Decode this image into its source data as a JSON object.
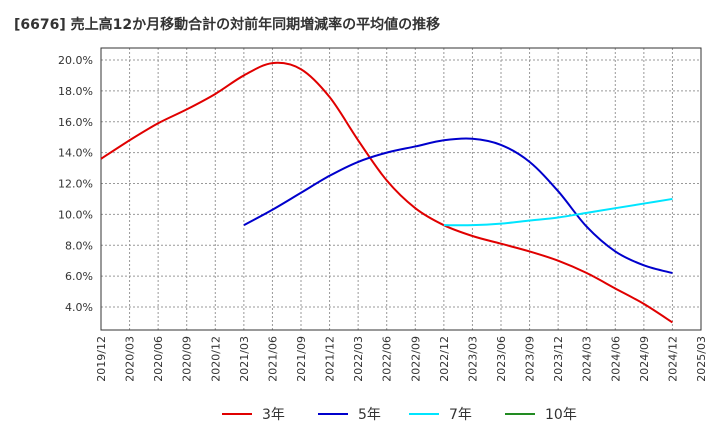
{
  "chart_data": {
    "type": "line",
    "title": "[6676]  売上高12か月移動合計の対前年同期増減率の平均値の推移",
    "x_ticks": [
      "2019/12",
      "2020/03",
      "2020/06",
      "2020/09",
      "2020/12",
      "2021/03",
      "2021/06",
      "2021/09",
      "2021/12",
      "2022/03",
      "2022/06",
      "2022/09",
      "2022/12",
      "2023/03",
      "2023/06",
      "2023/09",
      "2023/12",
      "2024/03",
      "2024/06",
      "2024/09",
      "2024/12",
      "2025/03"
    ],
    "y_ticks": [
      "4.0%",
      "6.0%",
      "8.0%",
      "10.0%",
      "12.0%",
      "14.0%",
      "16.0%",
      "18.0%",
      "20.0%"
    ],
    "ylim": [
      2.5,
      20.0
    ],
    "grid": true,
    "legend_position": "bottom",
    "series": [
      {
        "name": "3年",
        "color": "#e00000",
        "x": [
          "2019/12",
          "2020/03",
          "2020/06",
          "2020/09",
          "2020/12",
          "2021/03",
          "2021/06",
          "2021/09",
          "2021/12",
          "2022/03",
          "2022/06",
          "2022/09",
          "2022/12",
          "2023/03",
          "2023/06",
          "2023/09",
          "2023/12",
          "2024/03",
          "2024/06",
          "2024/09",
          "2024/12"
        ],
        "values": [
          13.6,
          14.8,
          15.9,
          16.8,
          17.8,
          19.0,
          19.8,
          19.4,
          17.6,
          14.8,
          12.2,
          10.4,
          9.3,
          8.6,
          8.1,
          7.6,
          7.0,
          6.2,
          5.2,
          4.2,
          3.0
        ]
      },
      {
        "name": "5年",
        "color": "#0000cc",
        "x": [
          "2021/03",
          "2021/06",
          "2021/09",
          "2021/12",
          "2022/03",
          "2022/06",
          "2022/09",
          "2022/12",
          "2023/03",
          "2023/06",
          "2023/09",
          "2023/12",
          "2024/03",
          "2024/06",
          "2024/09",
          "2024/12"
        ],
        "values": [
          9.3,
          10.3,
          11.4,
          12.5,
          13.4,
          14.0,
          14.4,
          14.8,
          14.9,
          14.5,
          13.4,
          11.5,
          9.2,
          7.6,
          6.7,
          6.2
        ]
      },
      {
        "name": "7年",
        "color": "#00e5ff",
        "x": [
          "2022/12",
          "2023/03",
          "2023/06",
          "2023/09",
          "2023/12",
          "2024/03",
          "2024/06",
          "2024/09",
          "2024/12"
        ],
        "values": [
          9.3,
          9.3,
          9.4,
          9.6,
          9.8,
          10.1,
          10.4,
          10.7,
          11.0
        ]
      },
      {
        "name": "10年",
        "color": "#228b22",
        "x": [],
        "values": []
      }
    ]
  }
}
